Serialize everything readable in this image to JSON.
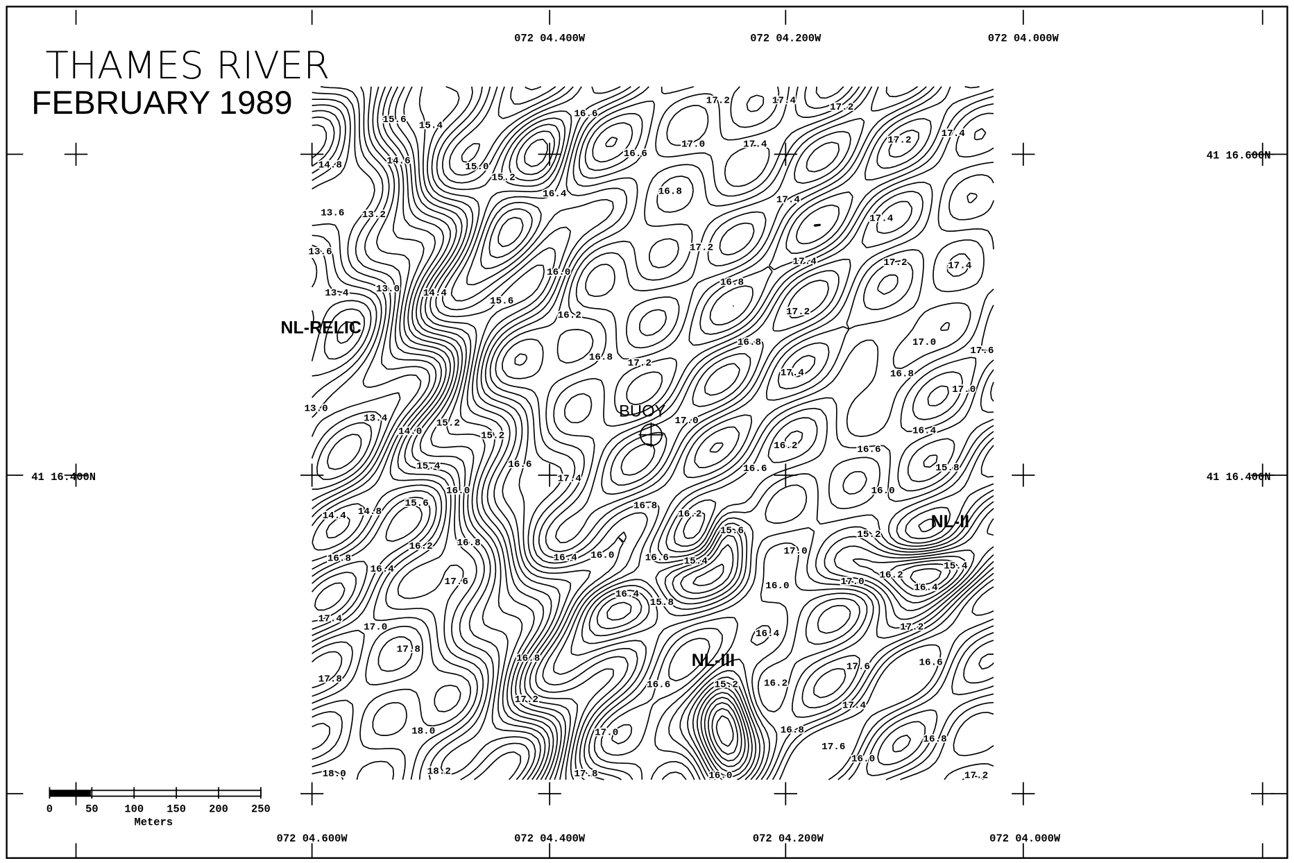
{
  "header": {
    "title": "THAMES RIVER",
    "subtitle": "FEBRUARY 1989"
  },
  "coordinates": {
    "top": [
      "072 04.400W",
      "072 04.200W",
      "072 04.000W"
    ],
    "bottom": [
      "072 04.600W",
      "072 04.400W",
      "072 04.200W",
      "072 04.000W"
    ],
    "left": [
      "41 16.400N"
    ],
    "right": [
      "41 16.600N",
      "41 16.400N"
    ]
  },
  "sites": [
    "NL-RELIC",
    "BUOY",
    "NL-II",
    "NL-III"
  ],
  "scale_bar": {
    "ticks": [
      0,
      50,
      100,
      150,
      200,
      250
    ],
    "unit": "Meters"
  },
  "contour_labels": [
    "15.6",
    "15.4",
    "16.6",
    "17.2",
    "17.4",
    "17.2",
    "17.2",
    "17.4",
    "17.0",
    "17.4",
    "16.6",
    "14.8",
    "14.6",
    "15.0",
    "15.2",
    "16.4",
    "16.8",
    "17.4",
    "13.6",
    "13.2",
    "17.4",
    "17.2",
    "17.4",
    "17.2",
    "17.4",
    "13.6",
    "16.0",
    "16.8",
    "13.4",
    "13.0",
    "14.4",
    "15.6",
    "16.2",
    "17.2",
    "16.8",
    "17.0",
    "17.6",
    "16.8",
    "17.2",
    "17.4",
    "16.8",
    "17.0",
    "13.0",
    "13.4",
    "14.0",
    "15.2",
    "15.2",
    "17.0",
    "16.2",
    "16.6",
    "16.4",
    "16.6",
    "17.4",
    "16.6",
    "15.8",
    "15.4",
    "16.0",
    "15.6",
    "16.0",
    "14.4",
    "14.8",
    "16.8",
    "16.2",
    "15.6",
    "15.2",
    "16.8",
    "16.2",
    "17.0",
    "16.8",
    "16.4",
    "16.4",
    "16.0",
    "16.6",
    "15.4",
    "16.0",
    "17.0",
    "16.2",
    "16.4",
    "15.4",
    "17.6",
    "16.4",
    "15.8",
    "17.4",
    "17.0",
    "17.2",
    "16.4",
    "17.8",
    "16.8",
    "17.6",
    "16.6",
    "17.8",
    "16.6",
    "15.2",
    "16.2",
    "17.2",
    "17.4",
    "17.0",
    "18.0",
    "16.8",
    "16.8",
    "18.0",
    "18.2",
    "17.8",
    "16.0",
    "17.2",
    "17.6",
    "16.0"
  ]
}
